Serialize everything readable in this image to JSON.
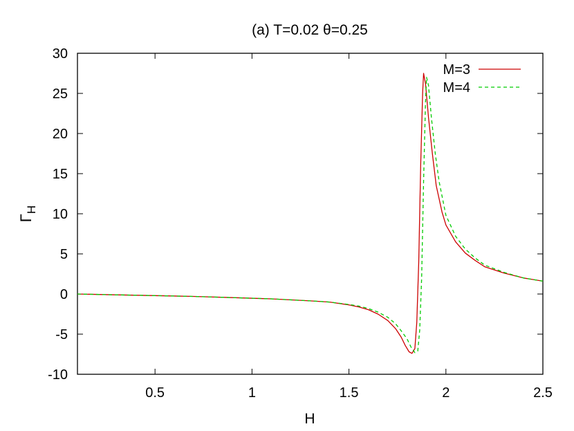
{
  "chart_data": {
    "type": "line",
    "title": "(a) T=0.02 θ=0.25",
    "xlabel": "H",
    "ylabel": "Γ",
    "ylabel_sub": "H",
    "xlim": [
      0.1,
      2.5
    ],
    "ylim": [
      -10,
      30
    ],
    "xticks": [
      0.5,
      1,
      1.5,
      2,
      2.5
    ],
    "xtick_labels": [
      "0.5",
      "1",
      "1.5",
      "2",
      "2.5"
    ],
    "yticks": [
      -10,
      -5,
      0,
      5,
      10,
      15,
      20,
      25,
      30
    ],
    "ytick_labels": [
      "-10",
      "-5",
      "0",
      "5",
      "10",
      "15",
      "20",
      "25",
      "30"
    ],
    "grid": false,
    "legend_position": "top-right",
    "series": [
      {
        "name": "M=3",
        "color": "#cc0000",
        "dash": "solid",
        "points": [
          [
            0.1,
            0.0
          ],
          [
            0.3,
            -0.1
          ],
          [
            0.5,
            -0.2
          ],
          [
            0.7,
            -0.3
          ],
          [
            0.9,
            -0.45
          ],
          [
            1.1,
            -0.6
          ],
          [
            1.3,
            -0.85
          ],
          [
            1.4,
            -1.0
          ],
          [
            1.5,
            -1.35
          ],
          [
            1.55,
            -1.6
          ],
          [
            1.6,
            -1.95
          ],
          [
            1.65,
            -2.5
          ],
          [
            1.7,
            -3.3
          ],
          [
            1.74,
            -4.3
          ],
          [
            1.77,
            -5.4
          ],
          [
            1.79,
            -6.4
          ],
          [
            1.81,
            -7.2
          ],
          [
            1.825,
            -7.4
          ],
          [
            1.84,
            -6.8
          ],
          [
            1.85,
            -3.5
          ],
          [
            1.86,
            4
          ],
          [
            1.87,
            16
          ],
          [
            1.88,
            25
          ],
          [
            1.885,
            27.5
          ],
          [
            1.895,
            26.2
          ],
          [
            1.91,
            22
          ],
          [
            1.93,
            17.5
          ],
          [
            1.95,
            13.5
          ],
          [
            1.98,
            10.2
          ],
          [
            2.0,
            8.6
          ],
          [
            2.05,
            6.5
          ],
          [
            2.1,
            5.1
          ],
          [
            2.15,
            4.2
          ],
          [
            2.2,
            3.4
          ],
          [
            2.3,
            2.6
          ],
          [
            2.4,
            2.0
          ],
          [
            2.5,
            1.6
          ]
        ]
      },
      {
        "name": "M=4",
        "color": "#00cc00",
        "dash": "dashed",
        "points": [
          [
            0.1,
            0.0
          ],
          [
            0.3,
            -0.1
          ],
          [
            0.5,
            -0.2
          ],
          [
            0.7,
            -0.3
          ],
          [
            0.9,
            -0.45
          ],
          [
            1.1,
            -0.6
          ],
          [
            1.3,
            -0.85
          ],
          [
            1.4,
            -1.0
          ],
          [
            1.5,
            -1.3
          ],
          [
            1.55,
            -1.5
          ],
          [
            1.6,
            -1.8
          ],
          [
            1.65,
            -2.25
          ],
          [
            1.7,
            -2.9
          ],
          [
            1.74,
            -3.7
          ],
          [
            1.77,
            -4.6
          ],
          [
            1.8,
            -5.6
          ],
          [
            1.82,
            -6.6
          ],
          [
            1.84,
            -7.3
          ],
          [
            1.855,
            -7.1
          ],
          [
            1.865,
            -4.5
          ],
          [
            1.875,
            2
          ],
          [
            1.885,
            14
          ],
          [
            1.895,
            24
          ],
          [
            1.9,
            27.0
          ],
          [
            1.91,
            26.0
          ],
          [
            1.925,
            22
          ],
          [
            1.945,
            17.5
          ],
          [
            1.965,
            14
          ],
          [
            1.99,
            11
          ],
          [
            2.0,
            9.8
          ],
          [
            2.05,
            7.2
          ],
          [
            2.1,
            5.6
          ],
          [
            2.15,
            4.5
          ],
          [
            2.2,
            3.6
          ],
          [
            2.3,
            2.7
          ],
          [
            2.4,
            2.0
          ],
          [
            2.5,
            1.6
          ]
        ]
      }
    ]
  }
}
